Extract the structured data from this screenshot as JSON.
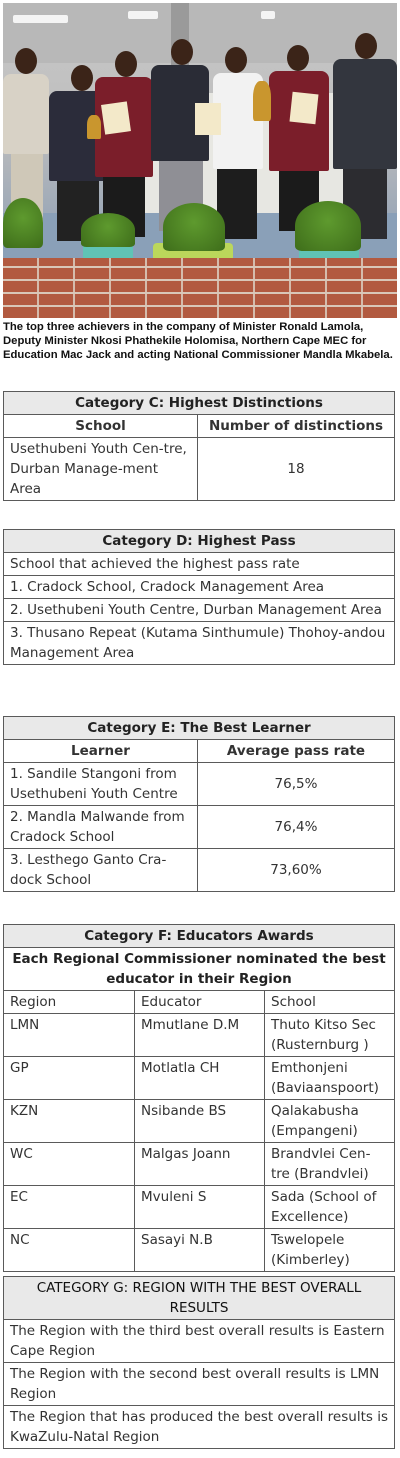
{
  "photo": {
    "caption": "The top three achievers in the company of Minister Ronald Lamola, Deputy Minister Nkosi Phathekile Holomisa, Northern Cape MEC for Education Mac Jack and acting National Commissioner Mandla Mkabela."
  },
  "category_c": {
    "title": "Category C: Highest Distinctions",
    "headers": [
      "School",
      "Number of distinctions"
    ],
    "rows": [
      {
        "school": "Usethubeni Youth Cen-tre, Durban Manage-ment Area",
        "count": "18"
      }
    ]
  },
  "category_d": {
    "title": "Category D: Highest Pass",
    "subheader": "School that achieved the highest pass rate",
    "rows": [
      "1. Cradock School, Cradock Management Area",
      "2. Usethubeni Youth Centre, Durban Management Area",
      "3. Thusano Repeat (Kutama Sinthumule) Thohoy-andou Management Area"
    ]
  },
  "category_e": {
    "title": "Category E: The Best Learner",
    "headers": [
      "Learner",
      "Average pass rate"
    ],
    "rows": [
      {
        "learner": "1. Sandile Stangoni from Usethubeni Youth Centre",
        "rate": "76,5%"
      },
      {
        "learner": "2. Mandla Malwande from Cradock School",
        "rate": "76,4%"
      },
      {
        "learner": "3. Lesthego Ganto Cra-dock School",
        "rate": "73,60%"
      }
    ]
  },
  "category_f": {
    "title": "Category F: Educators Awards",
    "subheader": "Each Regional Commissioner nominated the best educator in their Region",
    "headers": [
      "Region",
      "Educator",
      "School"
    ],
    "rows": [
      {
        "region": "LMN",
        "educator": "Mmutlane D.M",
        "school": "Thuto Kitso Sec (Rusternburg )"
      },
      {
        "region": "GP",
        "educator": "Motlatla CH",
        "school": "Emthonjeni (Baviaanspoort)"
      },
      {
        "region": "KZN",
        "educator": "Nsibande BS",
        "school": "Qalakabusha (Empangeni)"
      },
      {
        "region": "WC",
        "educator": "Malgas Joann",
        "school": "Brandvlei Cen-tre (Brandvlei)"
      },
      {
        "region": "EC",
        "educator": "Mvuleni S",
        "school": "Sada (School of Excellence)"
      },
      {
        "region": "NC",
        "educator": "Sasayi N.B",
        "school": "Tswelopele (Kimberley)"
      }
    ]
  },
  "category_g": {
    "title": "CATEGORY G: REGION WITH THE BEST OVERALL RESULTS",
    "rows": [
      "The Region with the third best overall results is Eastern Cape Region",
      "The Region with the second  best overall results is LMN Region",
      "The Region that has produced the best overall results is KwaZulu-Natal Region"
    ]
  }
}
